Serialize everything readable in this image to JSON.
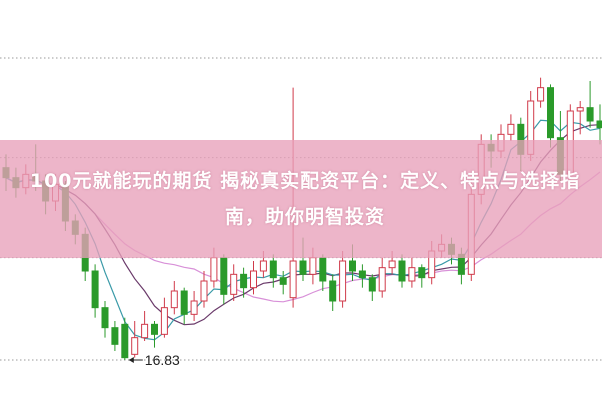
{
  "title": "100元就能玩的期货 揭秘真实配资平台：定义、特点与选择指南，助你明智投资",
  "colors": {
    "up": "#d03a4a",
    "down": "#2a9a2a",
    "ma5": "#3a9aa8",
    "ma10": "#6a3a6a",
    "ma20": "#d890d8",
    "grid": "#999999",
    "banner": "#e8a0ba"
  },
  "chart_data": {
    "type": "candlestick",
    "ylim": [
      15.6,
      27.63
    ],
    "gridlines": [
      25.89,
      22.9,
      19.9,
      16.83
    ],
    "annotations": [
      {
        "text": "16.83",
        "index": 12,
        "value": 16.83
      }
    ],
    "moving_averages": [
      5,
      10,
      20
    ],
    "open": [
      22.6,
      22.3,
      22.0,
      22.4,
      22.2,
      21.6,
      22.1,
      21.0,
      20.6,
      19.5,
      18.4,
      17.8,
      17.9,
      17.0,
      17.5,
      17.9,
      17.6,
      18.4,
      18.9,
      18.2,
      18.6,
      19.2,
      19.9,
      18.8,
      19.4,
      19.0,
      19.5,
      19.8,
      19.3,
      18.7,
      19.8,
      19.4,
      19.9,
      19.2,
      18.6,
      19.8,
      19.5,
      19.3,
      18.9,
      19.6,
      19.8,
      19.2,
      19.6,
      19.3,
      20.1,
      20.3,
      20.0,
      19.4,
      21.8,
      23.3,
      23.1,
      23.6,
      23.9,
      23.0,
      24.6,
      25.0,
      23.5,
      22.4,
      24.3,
      24.4,
      24.0
    ],
    "high": [
      23.0,
      22.6,
      22.7,
      23.3,
      22.4,
      22.4,
      22.2,
      21.2,
      20.8,
      19.7,
      18.6,
      18.0,
      18.1,
      18.0,
      18.3,
      18.0,
      18.7,
      19.2,
      19.0,
      18.9,
      19.5,
      20.2,
      20.0,
      19.7,
      19.6,
      19.8,
      20.1,
      20.0,
      19.5,
      25.0,
      20.5,
      20.2,
      20.0,
      19.4,
      20.1,
      20.3,
      19.7,
      19.4,
      19.9,
      20.1,
      20.0,
      19.9,
      19.7,
      20.4,
      20.6,
      20.5,
      20.2,
      22.3,
      23.6,
      23.6,
      23.9,
      24.2,
      24.1,
      24.9,
      25.3,
      25.1,
      24.3,
      24.5,
      24.6,
      25.2,
      24.5
    ],
    "low": [
      21.9,
      21.7,
      21.8,
      21.9,
      21.2,
      21.3,
      20.7,
      20.3,
      19.2,
      18.1,
      17.5,
      17.1,
      16.83,
      16.9,
      17.4,
      17.2,
      17.5,
      18.2,
      17.9,
      18.0,
      18.4,
      19.0,
      18.5,
      18.6,
      18.7,
      18.8,
      19.3,
      19.0,
      18.8,
      18.4,
      19.2,
      19.1,
      18.9,
      18.3,
      18.4,
      19.2,
      19.0,
      18.6,
      18.7,
      19.4,
      19.0,
      19.0,
      19.0,
      19.1,
      19.9,
      19.7,
      19.1,
      19.2,
      21.5,
      22.6,
      22.9,
      23.4,
      22.5,
      22.8,
      24.4,
      23.2,
      22.2,
      22.3,
      23.6,
      23.8,
      23.3
    ],
    "close": [
      22.3,
      22.0,
      22.4,
      22.2,
      21.6,
      22.1,
      21.0,
      20.6,
      19.5,
      18.4,
      17.8,
      17.3,
      16.9,
      17.5,
      17.9,
      17.6,
      18.4,
      18.9,
      18.2,
      18.6,
      19.2,
      19.9,
      18.8,
      19.4,
      19.0,
      19.5,
      19.8,
      19.3,
      19.1,
      19.8,
      19.4,
      19.9,
      19.2,
      18.6,
      19.8,
      19.5,
      19.3,
      18.9,
      19.6,
      19.8,
      19.2,
      19.6,
      19.3,
      20.1,
      20.3,
      20.0,
      19.4,
      21.8,
      23.3,
      23.1,
      23.6,
      23.9,
      23.0,
      24.6,
      25.0,
      23.5,
      22.4,
      24.3,
      24.4,
      24.0,
      23.8
    ]
  }
}
